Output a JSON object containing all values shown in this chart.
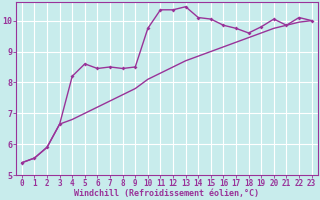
{
  "xlabel": "Windchill (Refroidissement éolien,°C)",
  "bg_color": "#c8ecec",
  "line_color": "#993399",
  "grid_color": "#ffffff",
  "x_ticks": [
    0,
    1,
    2,
    3,
    4,
    5,
    6,
    7,
    8,
    9,
    10,
    11,
    12,
    13,
    14,
    15,
    16,
    17,
    18,
    19,
    20,
    21,
    22,
    23
  ],
  "x_tick_labels": [
    "0",
    "1",
    "2",
    "3",
    "4",
    "5",
    "6",
    "7",
    "8",
    "9",
    "10",
    "11",
    "12",
    "13",
    "14",
    "15",
    "16",
    "17",
    "18",
    "19",
    "20",
    "21",
    "22",
    "23"
  ],
  "y_ticks": [
    5,
    6,
    7,
    8,
    9,
    10
  ],
  "xlim": [
    -0.5,
    23.5
  ],
  "ylim": [
    5.0,
    10.6
  ],
  "curve1_x": [
    0,
    1,
    2,
    3,
    4,
    5,
    6,
    7,
    8,
    9,
    10,
    11,
    12,
    13,
    14,
    15,
    16,
    17,
    18,
    19,
    20,
    21,
    22,
    23
  ],
  "curve1_y": [
    5.4,
    5.55,
    5.9,
    6.65,
    8.2,
    8.6,
    8.45,
    8.5,
    8.45,
    8.5,
    9.75,
    10.35,
    10.35,
    10.45,
    10.1,
    10.05,
    9.85,
    9.75,
    9.6,
    9.8,
    10.05,
    9.85,
    10.1,
    10.0
  ],
  "curve2_x": [
    0,
    1,
    2,
    3,
    4,
    5,
    6,
    7,
    8,
    9,
    10,
    11,
    12,
    13,
    14,
    15,
    16,
    17,
    18,
    19,
    20,
    21,
    22,
    23
  ],
  "curve2_y": [
    5.4,
    5.55,
    5.9,
    6.65,
    6.8,
    7.0,
    7.2,
    7.4,
    7.6,
    7.8,
    8.1,
    8.3,
    8.5,
    8.7,
    8.85,
    9.0,
    9.15,
    9.3,
    9.45,
    9.6,
    9.75,
    9.85,
    9.95,
    10.0
  ],
  "tick_fontsize": 5.5,
  "xlabel_fontsize": 6.0,
  "linewidth": 1.0,
  "markersize": 2.0
}
